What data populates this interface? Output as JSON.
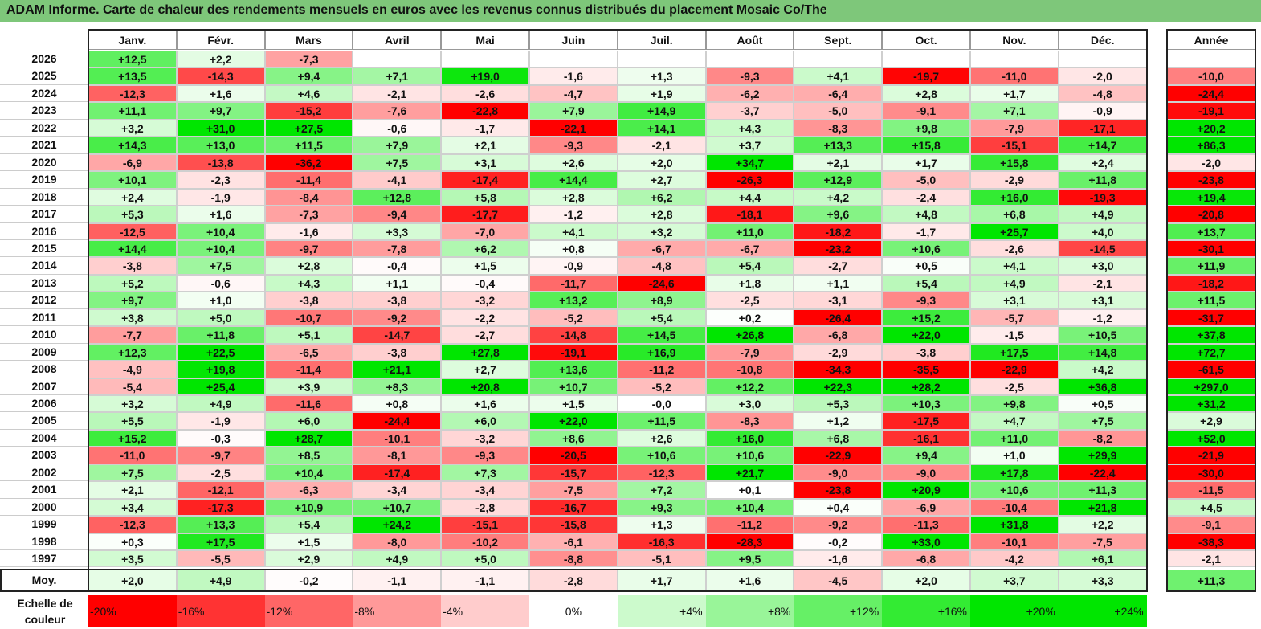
{
  "title": "ADAM Informe. Carte de chaleur des rendements mensuels en euros avec les revenus connus distribués du placement Mosaic Co/The",
  "chart_data": {
    "type": "heatmap",
    "months": [
      "Janv.",
      "Févr.",
      "Mars",
      "Avril",
      "Mai",
      "Juin",
      "Juil.",
      "Août",
      "Sept.",
      "Oct.",
      "Nov.",
      "Déc."
    ],
    "year_header": "Année",
    "rows": [
      {
        "year": "2026",
        "values": [
          "+12,5",
          "+2,2",
          "-7,3",
          "",
          "",
          "",
          "",
          "",
          "",
          "",
          "",
          ""
        ],
        "annual": ""
      },
      {
        "year": "2025",
        "values": [
          "+13,5",
          "-14,3",
          "+9,4",
          "+7,1",
          "+19,0",
          "-1,6",
          "+1,3",
          "-9,3",
          "+4,1",
          "-19,7",
          "-11,0",
          "-2,0"
        ],
        "annual": "-10,0"
      },
      {
        "year": "2024",
        "values": [
          "-12,3",
          "+1,6",
          "+4,6",
          "-2,1",
          "-2,6",
          "-4,7",
          "+1,9",
          "-6,2",
          "-6,4",
          "+2,8",
          "+1,7",
          "-4,8"
        ],
        "annual": "-24,4"
      },
      {
        "year": "2023",
        "values": [
          "+11,1",
          "+9,7",
          "-15,2",
          "-7,6",
          "-22,8",
          "+7,9",
          "+14,9",
          "-3,7",
          "-5,0",
          "-9,1",
          "+7,1",
          "-0,9"
        ],
        "annual": "-19,1"
      },
      {
        "year": "2022",
        "values": [
          "+3,2",
          "+31,0",
          "+27,5",
          "-0,6",
          "-1,7",
          "-22,1",
          "+14,1",
          "+4,3",
          "-8,3",
          "+9,8",
          "-7,9",
          "-17,1"
        ],
        "annual": "+20,2"
      },
      {
        "year": "2021",
        "values": [
          "+14,3",
          "+13,0",
          "+11,5",
          "+7,9",
          "+2,1",
          "-9,3",
          "-2,1",
          "+3,7",
          "+13,3",
          "+15,8",
          "-15,1",
          "+14,7"
        ],
        "annual": "+86,3"
      },
      {
        "year": "2020",
        "values": [
          "-6,9",
          "-13,8",
          "-36,2",
          "+7,5",
          "+3,1",
          "+2,6",
          "+2,0",
          "+34,7",
          "+2,1",
          "+1,7",
          "+15,8",
          "+2,4"
        ],
        "annual": "-2,0"
      },
      {
        "year": "2019",
        "values": [
          "+10,1",
          "-2,3",
          "-11,4",
          "-4,1",
          "-17,4",
          "+14,4",
          "+2,7",
          "-26,3",
          "+12,9",
          "-5,0",
          "-2,9",
          "+11,8"
        ],
        "annual": "-23,8"
      },
      {
        "year": "2018",
        "values": [
          "+2,4",
          "-1,9",
          "-8,4",
          "+12,8",
          "+5,8",
          "+2,8",
          "+6,2",
          "+4,4",
          "+4,2",
          "-2,4",
          "+16,0",
          "-19,3"
        ],
        "annual": "+19,4"
      },
      {
        "year": "2017",
        "values": [
          "+5,3",
          "+1,6",
          "-7,3",
          "-9,4",
          "-17,7",
          "-1,2",
          "+2,8",
          "-18,1",
          "+9,6",
          "+4,8",
          "+6,8",
          "+4,9"
        ],
        "annual": "-20,8"
      },
      {
        "year": "2016",
        "values": [
          "-12,5",
          "+10,4",
          "-1,6",
          "+3,3",
          "-7,0",
          "+4,1",
          "+3,2",
          "+11,0",
          "-18,2",
          "-1,7",
          "+25,7",
          "+4,0"
        ],
        "annual": "+13,7"
      },
      {
        "year": "2015",
        "values": [
          "+14,4",
          "+10,4",
          "-9,7",
          "-7,8",
          "+6,2",
          "+0,8",
          "-6,7",
          "-6,7",
          "-23,2",
          "+10,6",
          "-2,6",
          "-14,5"
        ],
        "annual": "-30,1"
      },
      {
        "year": "2014",
        "values": [
          "-3,8",
          "+7,5",
          "+2,8",
          "-0,4",
          "+1,5",
          "-0,9",
          "-4,8",
          "+5,4",
          "-2,7",
          "+0,5",
          "+4,1",
          "+3,0"
        ],
        "annual": "+11,9"
      },
      {
        "year": "2013",
        "values": [
          "+5,2",
          "-0,6",
          "+4,3",
          "+1,1",
          "-0,4",
          "-11,7",
          "-24,6",
          "+1,8",
          "+1,1",
          "+5,4",
          "+4,9",
          "-2,1"
        ],
        "annual": "-18,2"
      },
      {
        "year": "2012",
        "values": [
          "+9,7",
          "+1,0",
          "-3,8",
          "-3,8",
          "-3,2",
          "+13,2",
          "+8,9",
          "-2,5",
          "-3,1",
          "-9,3",
          "+3,1",
          "+3,1"
        ],
        "annual": "+11,5"
      },
      {
        "year": "2011",
        "values": [
          "+3,8",
          "+5,0",
          "-10,7",
          "-9,2",
          "-2,2",
          "-5,2",
          "+5,4",
          "+0,2",
          "-26,4",
          "+15,2",
          "-5,7",
          "-1,2"
        ],
        "annual": "-31,7"
      },
      {
        "year": "2010",
        "values": [
          "-7,7",
          "+11,8",
          "+5,1",
          "-14,7",
          "-2,7",
          "-14,8",
          "+14,5",
          "+26,8",
          "-6,8",
          "+22,0",
          "-1,5",
          "+10,5"
        ],
        "annual": "+37,8"
      },
      {
        "year": "2009",
        "values": [
          "+12,3",
          "+22,5",
          "-6,5",
          "-3,8",
          "+27,8",
          "-19,1",
          "+16,9",
          "-7,9",
          "-2,9",
          "-3,8",
          "+17,5",
          "+14,8"
        ],
        "annual": "+72,7"
      },
      {
        "year": "2008",
        "values": [
          "-4,9",
          "+19,8",
          "-11,4",
          "+21,1",
          "+2,7",
          "+13,6",
          "-11,2",
          "-10,8",
          "-34,3",
          "-35,5",
          "-22,9",
          "+4,2"
        ],
        "annual": "-61,5"
      },
      {
        "year": "2007",
        "values": [
          "-5,4",
          "+25,4",
          "+3,9",
          "+8,3",
          "+20,8",
          "+10,7",
          "-5,2",
          "+12,2",
          "+22,3",
          "+28,2",
          "-2,5",
          "+36,8"
        ],
        "annual": "+297,0"
      },
      {
        "year": "2006",
        "values": [
          "+3,2",
          "+4,9",
          "-11,6",
          "+0,8",
          "+1,6",
          "+1,5",
          "-0,0",
          "+3,0",
          "+5,3",
          "+10,3",
          "+9,8",
          "+0,5"
        ],
        "annual": "+31,2"
      },
      {
        "year": "2005",
        "values": [
          "+5,5",
          "-1,9",
          "+6,0",
          "-24,4",
          "+6,0",
          "+22,0",
          "+11,5",
          "-8,3",
          "+1,2",
          "-17,5",
          "+4,7",
          "+7,5"
        ],
        "annual": "+2,9"
      },
      {
        "year": "2004",
        "values": [
          "+15,2",
          "-0,3",
          "+28,7",
          "-10,1",
          "-3,2",
          "+8,6",
          "+2,6",
          "+16,0",
          "+6,8",
          "-16,1",
          "+11,0",
          "-8,2"
        ],
        "annual": "+52,0"
      },
      {
        "year": "2003",
        "values": [
          "-11,0",
          "-9,7",
          "+8,5",
          "-8,1",
          "-9,3",
          "-20,5",
          "+10,6",
          "+10,6",
          "-22,9",
          "+9,4",
          "+1,0",
          "+29,9"
        ],
        "annual": "-21,9"
      },
      {
        "year": "2002",
        "values": [
          "+7,5",
          "-2,5",
          "+10,4",
          "-17,4",
          "+7,3",
          "-15,7",
          "-12,3",
          "+21,7",
          "-9,0",
          "-9,0",
          "+17,8",
          "-22,4"
        ],
        "annual": "-30,0"
      },
      {
        "year": "2001",
        "values": [
          "+2,1",
          "-12,1",
          "-6,3",
          "-3,4",
          "-3,4",
          "-7,5",
          "+7,2",
          "+0,1",
          "-23,8",
          "+20,9",
          "+10,6",
          "+11,3"
        ],
        "annual": "-11,5"
      },
      {
        "year": "2000",
        "values": [
          "+3,4",
          "-17,3",
          "+10,9",
          "+10,7",
          "-2,8",
          "-16,7",
          "+9,3",
          "+10,4",
          "+0,4",
          "-6,9",
          "-10,4",
          "+21,8"
        ],
        "annual": "+4,5"
      },
      {
        "year": "1999",
        "values": [
          "-12,3",
          "+13,3",
          "+5,4",
          "+24,2",
          "-15,1",
          "-15,8",
          "+1,3",
          "-11,2",
          "-9,2",
          "-11,3",
          "+31,8",
          "+2,2"
        ],
        "annual": "-9,1"
      },
      {
        "year": "1998",
        "values": [
          "+0,3",
          "+17,5",
          "+1,5",
          "-8,0",
          "-10,2",
          "-6,1",
          "-16,3",
          "-28,3",
          "-0,2",
          "+33,0",
          "-10,1",
          "-7,5"
        ],
        "annual": "-38,3"
      },
      {
        "year": "1997",
        "values": [
          "+3,5",
          "-5,5",
          "+2,9",
          "+4,9",
          "+5,0",
          "-8,8",
          "-5,1",
          "+9,5",
          "-1,6",
          "-6,8",
          "-4,2",
          "+6,1"
        ],
        "annual": "-2,1"
      }
    ],
    "average": {
      "label": "Moy.",
      "values": [
        "+2,0",
        "+4,9",
        "-0,2",
        "-1,1",
        "-1,1",
        "-2,8",
        "+1,7",
        "+1,6",
        "-4,5",
        "+2,0",
        "+3,7",
        "+3,3"
      ],
      "annual": "+11,3"
    },
    "color_scale": {
      "label": "Echelle de couleur",
      "stops": [
        "-20%",
        "-16%",
        "-12%",
        "-8%",
        "-4%",
        "0%",
        "+4%",
        "+8%",
        "+12%",
        "+16%",
        "+20%",
        "+24%"
      ],
      "negative_color": "#ff0000",
      "neutral_color": "#ffffff",
      "positive_color": "#00e600"
    }
  }
}
